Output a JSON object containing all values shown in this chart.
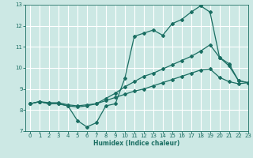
{
  "xlabel": "Humidex (Indice chaleur)",
  "xlim": [
    -0.5,
    23
  ],
  "ylim": [
    7,
    13
  ],
  "yticks": [
    7,
    8,
    9,
    10,
    11,
    12,
    13
  ],
  "xticks": [
    0,
    1,
    2,
    3,
    4,
    5,
    6,
    7,
    8,
    9,
    10,
    11,
    12,
    13,
    14,
    15,
    16,
    17,
    18,
    19,
    20,
    21,
    22,
    23
  ],
  "bg_color": "#cce8e4",
  "grid_color": "#ffffff",
  "line_color": "#1a6e62",
  "line1_x": [
    0,
    1,
    2,
    3,
    4,
    5,
    6,
    7,
    8,
    9,
    10,
    11,
    12,
    13,
    14,
    15,
    16,
    17,
    18,
    19,
    20,
    21,
    22,
    23
  ],
  "line1_y": [
    8.3,
    8.4,
    8.3,
    8.3,
    8.2,
    7.5,
    7.2,
    7.4,
    8.2,
    8.3,
    9.5,
    11.5,
    11.65,
    11.8,
    11.55,
    12.1,
    12.3,
    12.65,
    12.95,
    12.65,
    10.5,
    10.2,
    9.4,
    9.3
  ],
  "line2_x": [
    0,
    1,
    2,
    3,
    4,
    5,
    6,
    7,
    8,
    9,
    10,
    11,
    12,
    13,
    14,
    15,
    16,
    17,
    18,
    19,
    20,
    21,
    22,
    23
  ],
  "line2_y": [
    8.3,
    8.4,
    8.3,
    8.3,
    8.2,
    8.15,
    8.2,
    8.3,
    8.55,
    8.8,
    9.1,
    9.35,
    9.6,
    9.75,
    9.95,
    10.15,
    10.35,
    10.55,
    10.8,
    11.1,
    10.5,
    10.1,
    9.4,
    9.3
  ],
  "line3_x": [
    0,
    1,
    2,
    3,
    4,
    5,
    6,
    7,
    8,
    9,
    10,
    11,
    12,
    13,
    14,
    15,
    16,
    17,
    18,
    19,
    20,
    21,
    22,
    23
  ],
  "line3_y": [
    8.3,
    8.4,
    8.35,
    8.35,
    8.25,
    8.2,
    8.25,
    8.3,
    8.45,
    8.6,
    8.75,
    8.9,
    9.0,
    9.15,
    9.3,
    9.45,
    9.6,
    9.75,
    9.9,
    9.95,
    9.55,
    9.35,
    9.25,
    9.3
  ]
}
